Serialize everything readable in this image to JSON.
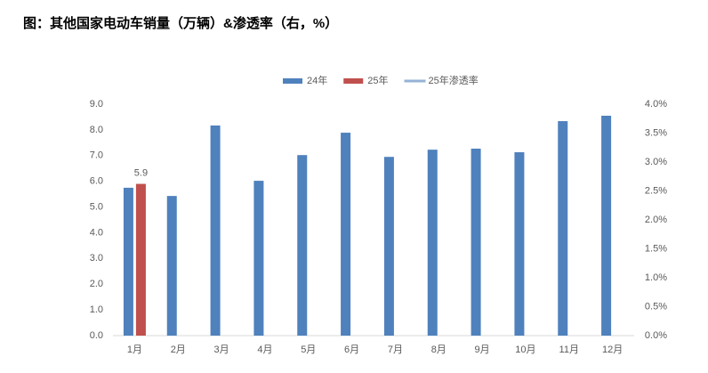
{
  "chart_data": {
    "type": "bar",
    "title": "图：其他国家电动车销量（万辆）&渗透率（右，%）",
    "categories": [
      "1月",
      "2月",
      "3月",
      "4月",
      "5月",
      "6月",
      "7月",
      "8月",
      "9月",
      "10月",
      "11月",
      "12月"
    ],
    "series": [
      {
        "name": "24年",
        "color": "#4f81bd",
        "values": [
          5.75,
          5.43,
          8.17,
          6.02,
          7.02,
          7.89,
          6.95,
          7.23,
          7.27,
          7.13,
          8.34,
          8.55
        ]
      },
      {
        "name": "25年",
        "color": "#c0504d",
        "values": [
          5.9,
          null,
          null,
          null,
          null,
          null,
          null,
          null,
          null,
          null,
          null,
          null
        ]
      },
      {
        "name": "25年渗透率",
        "color": "#95b3d7",
        "type": "line",
        "axis": "y2",
        "values": [
          null,
          null,
          null,
          null,
          null,
          null,
          null,
          null,
          null,
          null,
          null,
          null
        ]
      }
    ],
    "ylim": [
      0,
      9
    ],
    "yticks": [
      {
        "value": 0,
        "label": "0.0"
      },
      {
        "value": 1,
        "label": "1.0"
      },
      {
        "value": 2,
        "label": "2.0"
      },
      {
        "value": 3,
        "label": "3.0"
      },
      {
        "value": 4,
        "label": "4.0"
      },
      {
        "value": 5,
        "label": "5.0"
      },
      {
        "value": 6,
        "label": "6.0"
      },
      {
        "value": 7,
        "label": "7.0"
      },
      {
        "value": 8,
        "label": "8.0"
      },
      {
        "value": 9,
        "label": "9.0"
      }
    ],
    "y2lim": [
      0,
      4
    ],
    "y2ticks": [
      {
        "value": 0,
        "label": "0.0%"
      },
      {
        "value": 0.5,
        "label": "0.5%"
      },
      {
        "value": 1,
        "label": "1.0%"
      },
      {
        "value": 1.5,
        "label": "1.5%"
      },
      {
        "value": 2,
        "label": "2.0%"
      },
      {
        "value": 2.5,
        "label": "2.5%"
      },
      {
        "value": 3,
        "label": "3.0%"
      },
      {
        "value": 3.5,
        "label": "3.5%"
      },
      {
        "value": 4,
        "label": "4.0%"
      }
    ],
    "legend": "top"
  }
}
